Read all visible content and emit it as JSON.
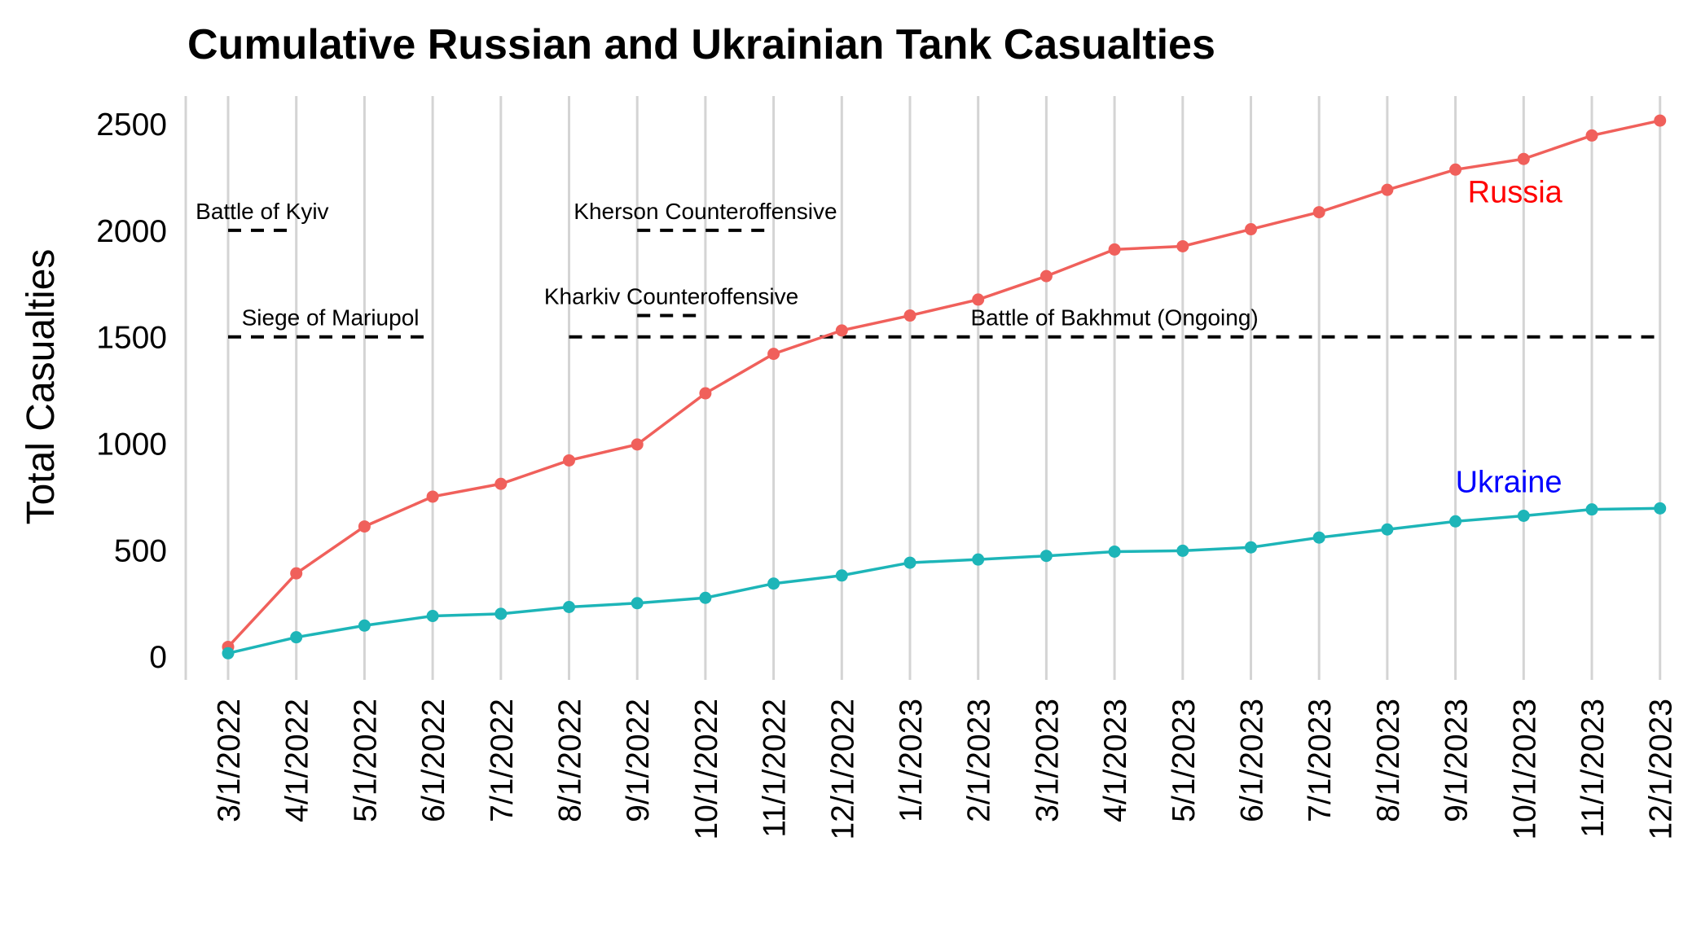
{
  "chart_data": {
    "type": "line",
    "title": "Cumulative Russian and Ukrainian Tank Casualties",
    "xlabel": "",
    "ylabel": "Total Casualties",
    "ylim": [
      -110,
      2630
    ],
    "yticks": [
      0,
      500,
      1000,
      1500,
      2000,
      2500
    ],
    "grid": "vertical lines at each month",
    "legend": "none (series labels placed near end of lines)",
    "categories": [
      "3/1/2022",
      "4/1/2022",
      "5/1/2022",
      "6/1/2022",
      "7/1/2022",
      "8/1/2022",
      "9/1/2022",
      "10/1/2022",
      "11/1/2022",
      "12/1/2022",
      "1/1/2023",
      "2/1/2023",
      "3/1/2023",
      "4/1/2023",
      "5/1/2023",
      "6/1/2023",
      "7/1/2023",
      "8/1/2023",
      "9/1/2023",
      "10/1/2023",
      "11/1/2023",
      "12/1/2023"
    ],
    "series": [
      {
        "name": "Russia",
        "color": "#F0605B",
        "label_color": "#FF0000",
        "values": [
          45,
          390,
          610,
          750,
          810,
          920,
          995,
          1235,
          1420,
          1530,
          1600,
          1675,
          1785,
          1910,
          1925,
          2005,
          2085,
          2190,
          2285,
          2335,
          2445,
          2515
        ]
      },
      {
        "name": "Ukraine",
        "color": "#1DB5B8",
        "label_color": "#0000FF",
        "values": [
          15,
          90,
          145,
          190,
          200,
          232,
          250,
          275,
          342,
          380,
          440,
          455,
          472,
          492,
          496,
          512,
          558,
          596,
          634,
          660,
          690,
          695
        ]
      }
    ],
    "annotations": [
      {
        "text": "Battle of Kyiv",
        "start": "3/1/2022",
        "end": "4/1/2022",
        "y": 2000
      },
      {
        "text": "Siege of Mariupol",
        "start": "3/1/2022",
        "end": "6/1/2022",
        "y": 1500
      },
      {
        "text": "Kherson Counteroffensive",
        "start": "9/1/2022",
        "end": "11/1/2022",
        "y": 2000
      },
      {
        "text": "Kharkiv Counteroffensive",
        "start": "9/1/2022",
        "end": "10/1/2022",
        "y": 1600
      },
      {
        "text": "Battle of Bakhmut (Ongoing)",
        "start": "8/1/2022",
        "end": "12/1/2023",
        "y": 1500
      }
    ]
  }
}
